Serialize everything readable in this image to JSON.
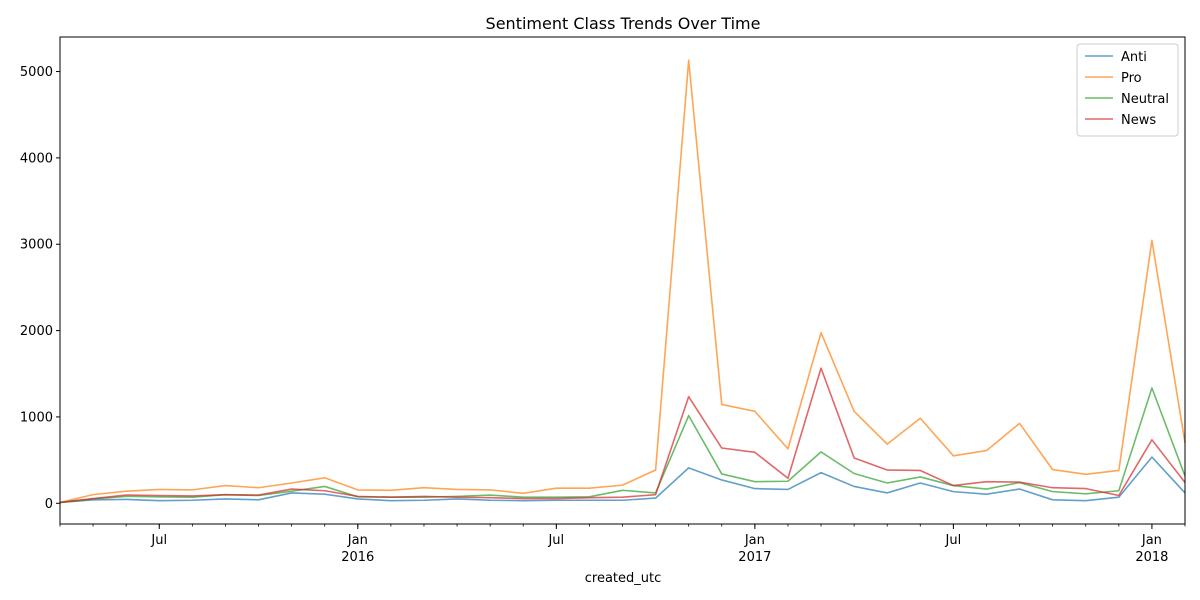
{
  "chart_data": {
    "type": "line",
    "title": "Sentiment Class Trends Over Time",
    "xlabel": "created_utc",
    "ylabel": "",
    "x": [
      "2015-04",
      "2015-05",
      "2015-06",
      "2015-07",
      "2015-08",
      "2015-09",
      "2015-10",
      "2015-11",
      "2015-12",
      "2016-01",
      "2016-02",
      "2016-03",
      "2016-04",
      "2016-05",
      "2016-06",
      "2016-07",
      "2016-08",
      "2016-09",
      "2016-10",
      "2016-11",
      "2016-12",
      "2017-01",
      "2017-02",
      "2017-03",
      "2017-04",
      "2017-05",
      "2017-06",
      "2017-07",
      "2017-08",
      "2017-09",
      "2017-10",
      "2017-11",
      "2017-12",
      "2018-01",
      "2018-02"
    ],
    "xlim": [
      "2015-04",
      "2018-02"
    ],
    "ylim": [
      -240,
      5400
    ],
    "yticks": [
      0,
      1000,
      2000,
      3000,
      4000,
      5000
    ],
    "xticks_major": [
      {
        "x": "2015-07",
        "label": "Jul",
        "sub": ""
      },
      {
        "x": "2016-01",
        "label": "Jan",
        "sub": "2016"
      },
      {
        "x": "2016-07",
        "label": "Jul",
        "sub": ""
      },
      {
        "x": "2017-01",
        "label": "Jan",
        "sub": "2017"
      },
      {
        "x": "2017-07",
        "label": "Jul",
        "sub": ""
      },
      {
        "x": "2018-01",
        "label": "Jan",
        "sub": "2018"
      }
    ],
    "grid": false,
    "legend_position": "top-right",
    "series": [
      {
        "name": "Anti",
        "color": "#1f77b4",
        "values": [
          10,
          40,
          45,
          30,
          35,
          50,
          40,
          120,
          105,
          50,
          30,
          35,
          50,
          35,
          30,
          35,
          35,
          35,
          60,
          410,
          270,
          170,
          160,
          355,
          195,
          120,
          235,
          135,
          105,
          165,
          40,
          30,
          70,
          535,
          120
        ]
      },
      {
        "name": "Pro",
        "color": "#ff7f0e",
        "values": [
          10,
          100,
          140,
          160,
          155,
          205,
          180,
          235,
          295,
          155,
          150,
          180,
          160,
          155,
          115,
          175,
          175,
          210,
          385,
          5130,
          1145,
          1065,
          630,
          1975,
          1065,
          685,
          985,
          550,
          610,
          925,
          390,
          335,
          380,
          3045,
          700
        ]
      },
      {
        "name": "Neutral",
        "color": "#2ca02c",
        "values": [
          10,
          50,
          80,
          75,
          70,
          100,
          90,
          140,
          195,
          75,
          70,
          70,
          80,
          95,
          70,
          70,
          75,
          150,
          120,
          1015,
          340,
          250,
          255,
          595,
          345,
          235,
          305,
          205,
          165,
          240,
          135,
          110,
          145,
          1335,
          315
        ]
      },
      {
        "name": "News",
        "color": "#d62728",
        "values": [
          10,
          55,
          95,
          90,
          85,
          100,
          95,
          165,
          145,
          80,
          70,
          80,
          70,
          65,
          55,
          55,
          65,
          70,
          100,
          1235,
          640,
          590,
          290,
          1565,
          525,
          385,
          380,
          205,
          250,
          245,
          180,
          170,
          90,
          735,
          240
        ]
      }
    ]
  }
}
